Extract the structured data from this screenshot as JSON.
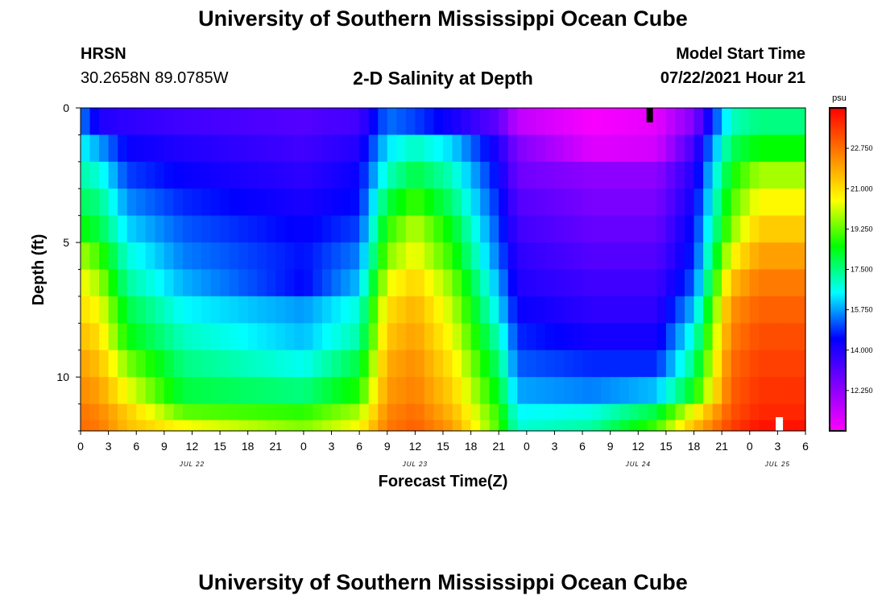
{
  "header": {
    "title": "University of Southern Mississippi Ocean Cube",
    "station": "HRSN",
    "coords": "30.2658N  89.0785W",
    "subtitle": "2-D Salinity at Depth",
    "model_start_label": "Model Start Time",
    "model_start_value": "07/22/2021 Hour 21"
  },
  "footer": {
    "title": "University of Southern Mississippi Ocean Cube"
  },
  "colors": {
    "colormap": [
      "#ff00ff",
      "#8000ff",
      "#0000ff",
      "#00ffff",
      "#00ff00",
      "#ffff00",
      "#ff8000",
      "#ff0000"
    ],
    "marker_dark": "#000000",
    "marker_light": "#ffffff"
  },
  "chart_data": {
    "type": "heatmap",
    "title": "2-D Salinity at Depth",
    "xlabel": "Forecast Time(Z)",
    "ylabel": "Depth (ft)",
    "x_range": [
      0,
      78
    ],
    "y_range": [
      0,
      12
    ],
    "x_tick_values": [
      0,
      3,
      6,
      9,
      12,
      15,
      18,
      21,
      24,
      27,
      30,
      33,
      36,
      39,
      42,
      45,
      48,
      51,
      54,
      57,
      60,
      63,
      66,
      69,
      72,
      75,
      78
    ],
    "x_tick_labels": [
      "0",
      "3",
      "6",
      "9",
      "12",
      "15",
      "18",
      "21",
      "0",
      "3",
      "6",
      "9",
      "12",
      "15",
      "18",
      "21",
      "0",
      "3",
      "6",
      "9",
      "12",
      "15",
      "18",
      "21",
      "0",
      "3",
      "6"
    ],
    "y_tick_values": [
      0,
      5,
      10
    ],
    "y_tick_labels": [
      "0",
      "5",
      "10"
    ],
    "date_labels": [
      {
        "hour": 12,
        "label": "JUL 22"
      },
      {
        "hour": 36,
        "label": "JUL 23"
      },
      {
        "hour": 60,
        "label": "JUL 24"
      },
      {
        "hour": 75,
        "label": "JUL 25"
      }
    ],
    "colorbar": {
      "unit": "psu",
      "min": 10.5,
      "max": 24.5,
      "tick_values": [
        12.25,
        14.0,
        15.75,
        17.5,
        19.25,
        21.0,
        22.75
      ],
      "tick_labels": [
        "12.250",
        "14.000",
        "15.750",
        "17.500",
        "19.250",
        "21.000",
        "22.750"
      ]
    },
    "depth_levels_ft": [
      0.5,
      1.5,
      2.5,
      3.5,
      4.5,
      5.5,
      6.5,
      7.5,
      8.5,
      9.5,
      10.5,
      11.5
    ],
    "time_breakpoints_h": [
      0,
      2,
      5,
      11,
      24,
      30,
      33,
      36,
      40,
      45,
      47,
      55,
      62,
      66,
      70,
      73,
      78
    ],
    "salinity_psu": [
      [
        15.6,
        14.0,
        13.8,
        13.5,
        13.2,
        13.5,
        15.4,
        15.0,
        14.2,
        13.0,
        11.5,
        10.6,
        10.9,
        12.5,
        17.0,
        17.5,
        17.5
      ],
      [
        16.5,
        15.8,
        14.4,
        14.0,
        13.5,
        14.0,
        16.3,
        17.0,
        16.2,
        14.0,
        12.5,
        11.0,
        11.2,
        13.5,
        17.8,
        18.5,
        18.5
      ],
      [
        17.2,
        16.8,
        15.0,
        14.4,
        13.8,
        14.4,
        17.0,
        18.0,
        17.0,
        14.4,
        12.8,
        12.3,
        12.3,
        14.0,
        18.5,
        19.8,
        19.8
      ],
      [
        17.8,
        17.5,
        15.6,
        14.8,
        14.1,
        14.6,
        18.0,
        19.0,
        17.6,
        14.7,
        13.2,
        12.6,
        12.6,
        14.3,
        19.0,
        20.6,
        20.6
      ],
      [
        18.5,
        18.0,
        16.2,
        15.2,
        14.4,
        15.0,
        18.8,
        20.0,
        18.3,
        15.0,
        13.5,
        12.9,
        12.9,
        14.6,
        19.5,
        21.3,
        21.3
      ],
      [
        19.8,
        19.0,
        16.8,
        15.5,
        14.6,
        15.5,
        19.5,
        20.5,
        18.8,
        15.3,
        13.8,
        13.2,
        13.2,
        14.8,
        20.5,
        22.0,
        22.0
      ],
      [
        20.5,
        19.8,
        17.3,
        15.9,
        14.5,
        16.0,
        20.3,
        21.2,
        19.5,
        15.8,
        14.0,
        13.5,
        13.5,
        15.2,
        21.5,
        22.6,
        22.6
      ],
      [
        21.0,
        20.5,
        18.0,
        16.5,
        15.7,
        16.8,
        21.0,
        21.7,
        20.0,
        16.3,
        14.4,
        13.8,
        13.8,
        16.0,
        22.2,
        23.0,
        23.0
      ],
      [
        21.5,
        21.0,
        18.5,
        17.0,
        16.0,
        17.2,
        21.4,
        22.0,
        20.4,
        17.0,
        14.8,
        14.2,
        14.2,
        16.8,
        22.5,
        23.3,
        23.3
      ],
      [
        22.0,
        21.5,
        19.5,
        17.5,
        16.6,
        18.0,
        21.8,
        22.3,
        20.8,
        17.6,
        15.2,
        14.8,
        14.8,
        17.5,
        22.8,
        23.5,
        23.5
      ],
      [
        22.3,
        22.0,
        20.4,
        18.0,
        17.5,
        18.7,
        22.1,
        22.5,
        21.2,
        18.2,
        15.8,
        15.5,
        16.0,
        18.4,
        23.0,
        23.7,
        23.7
      ],
      [
        22.7,
        22.4,
        21.3,
        19.2,
        18.8,
        19.8,
        22.4,
        22.8,
        21.6,
        18.8,
        16.5,
        16.7,
        18.0,
        20.5,
        23.2,
        23.9,
        23.9
      ]
    ],
    "bottom_row_psu": [
      22.8,
      22.6,
      21.5,
      20.5,
      19.5,
      20.5,
      22.6,
      23.0,
      22.0,
      19.0,
      16.8,
      17.2,
      19.0,
      21.5,
      23.5,
      24.2,
      24.2
    ]
  }
}
